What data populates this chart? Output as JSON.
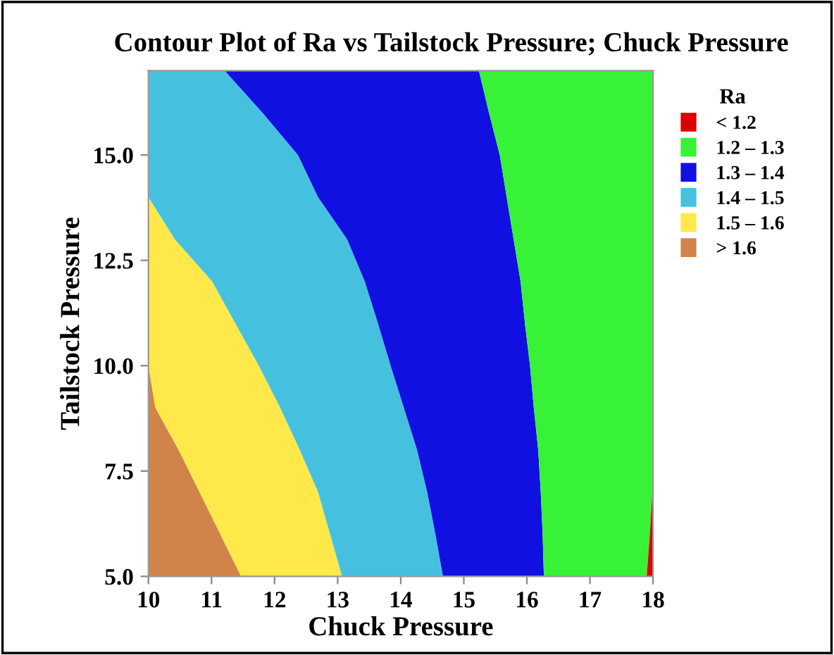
{
  "chart_data": {
    "type": "area",
    "orientation": "horizontal",
    "title": "Contour Plot of Ra vs Tailstock Pressure; Chuck Pressure",
    "xlabel": "Chuck Pressure",
    "ylabel": "Tailstock Pressure",
    "legend_title": "Ra",
    "legend": "right",
    "grid": false,
    "xlim": [
      10,
      18
    ],
    "ylim": [
      5,
      17
    ],
    "xticks": [
      10,
      11,
      12,
      13,
      14,
      15,
      16,
      17,
      18
    ],
    "yticks": [
      {
        "value": 5,
        "label": "5.0"
      },
      {
        "value": 7.5,
        "label": "7.5"
      },
      {
        "value": 10,
        "label": "10.0"
      },
      {
        "value": 12.5,
        "label": "12.5"
      },
      {
        "value": 15,
        "label": "15.0"
      }
    ],
    "x": [
      5,
      6,
      7,
      8,
      9,
      10,
      11,
      12,
      13,
      14,
      15,
      16,
      17
    ],
    "series": [
      {
        "name": "> 1.6",
        "color": "#d1844a",
        "values": [
          11.47,
          11.14,
          10.81,
          10.48,
          10.11,
          10,
          10,
          10,
          10,
          10,
          10,
          10,
          10
        ]
      },
      {
        "name": "1.5 – 1.6",
        "color": "#ffe84a",
        "values": [
          13.07,
          12.88,
          12.69,
          12.4,
          12.09,
          11.75,
          11.38,
          11.01,
          10.42,
          10,
          10,
          10,
          10
        ]
      },
      {
        "name": "1.4 – 1.5",
        "color": "#45c1df",
        "values": [
          14.67,
          14.55,
          14.42,
          14.26,
          14.05,
          13.84,
          13.64,
          13.43,
          13.15,
          12.69,
          12.37,
          11.81,
          11.21
        ]
      },
      {
        "name": "1.3 – 1.4",
        "color": "#1010e0",
        "values": [
          16.27,
          16.25,
          16.22,
          16.18,
          16.11,
          16.05,
          15.97,
          15.9,
          15.79,
          15.68,
          15.57,
          15.4,
          15.24
        ]
      },
      {
        "name": "1.2 – 1.3",
        "color": "#38f238",
        "values": [
          17.9,
          17.95,
          17.99,
          18,
          18,
          18,
          18,
          18,
          18,
          18,
          18,
          18,
          18
        ]
      },
      {
        "name": "< 1.2",
        "color": "#dd0000",
        "values": [
          18,
          18,
          18,
          18,
          18,
          18,
          18,
          18,
          18,
          18,
          18,
          18,
          18
        ]
      }
    ]
  }
}
